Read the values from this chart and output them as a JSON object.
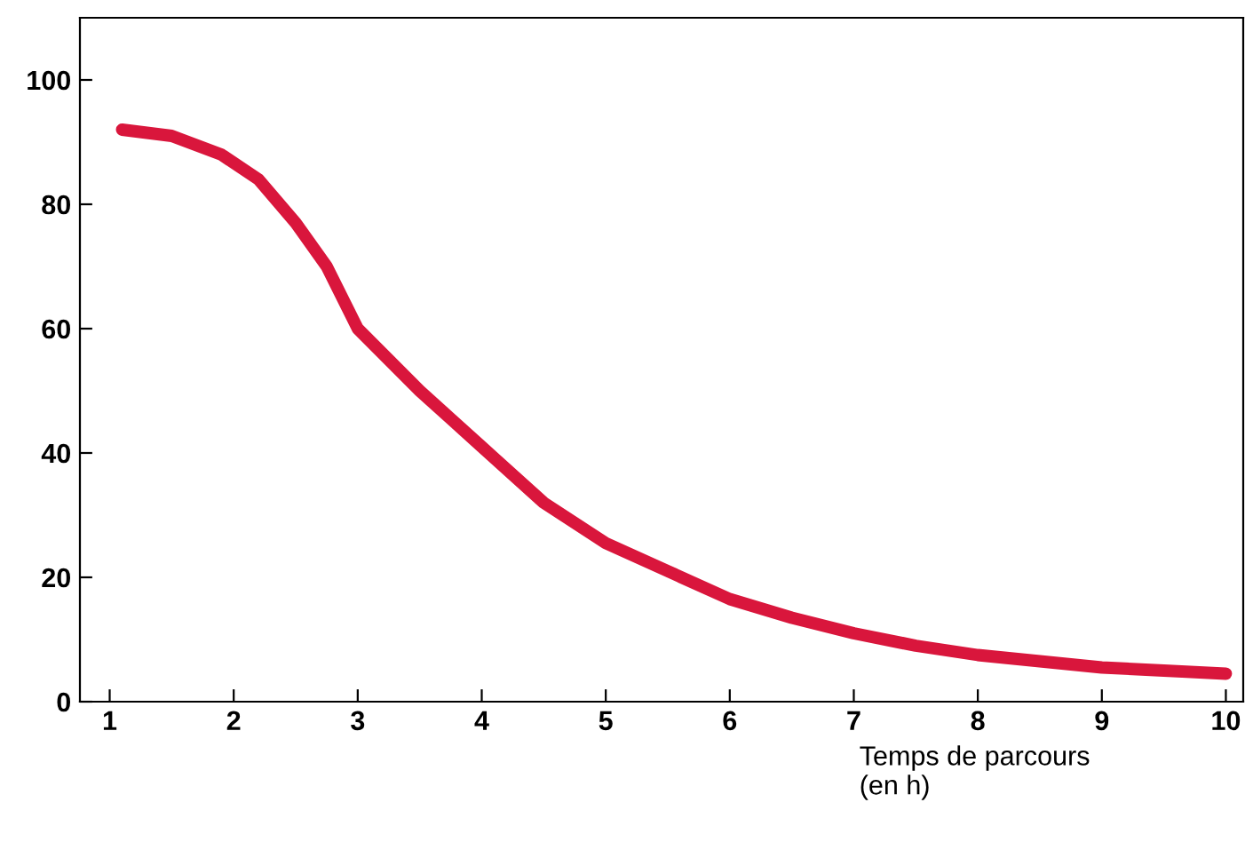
{
  "chart_data": {
    "type": "line",
    "xlabel": "Temps de parcours\n(en h)",
    "x": [
      1.1,
      1.5,
      1.9,
      2.2,
      2.5,
      2.75,
      3.0,
      3.5,
      4.0,
      4.5,
      5.0,
      5.5,
      6.0,
      6.5,
      7.0,
      7.5,
      8.0,
      8.5,
      9.0,
      9.5,
      10.0
    ],
    "series": [
      {
        "color": "#d9163c",
        "values": [
          92,
          91,
          88,
          84,
          77,
          70,
          60,
          50,
          41,
          32,
          25.5,
          21,
          16.5,
          13.5,
          11,
          9,
          7.5,
          6.5,
          5.5,
          5,
          4.5
        ]
      }
    ],
    "xlim": [
      0.76,
      10.14
    ],
    "ylim": [
      0,
      110
    ],
    "xticks": [
      1,
      2,
      3,
      4,
      5,
      6,
      7,
      8,
      9,
      10
    ],
    "yticks": [
      0,
      20,
      40,
      60,
      80,
      100
    ],
    "grid": false,
    "legend": false,
    "marker": "none",
    "line_style": "solid"
  }
}
